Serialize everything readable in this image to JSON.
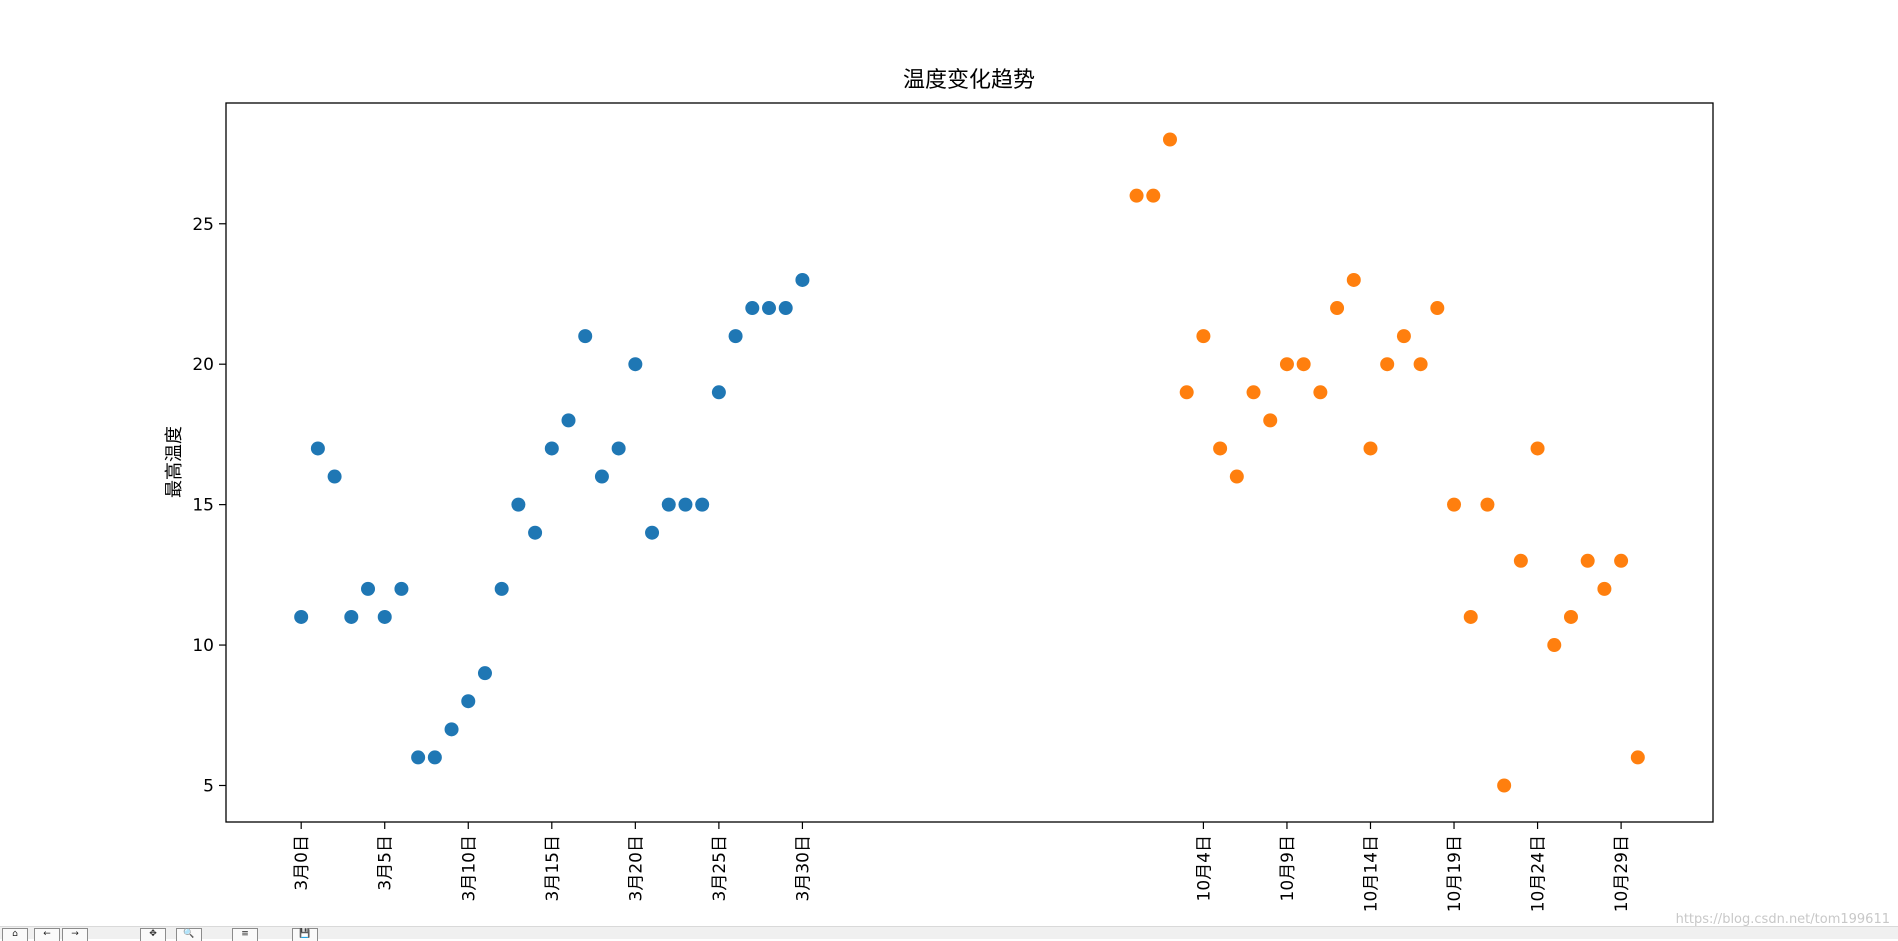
{
  "chart_data": {
    "type": "scatter",
    "title": "温度变化趋势",
    "ylabel": "最高温度",
    "xlabel": "",
    "ylim": [
      3.7,
      29.3
    ],
    "yticks": [
      5,
      10,
      15,
      20,
      25
    ],
    "xlim": [
      -4.5,
      84.5
    ],
    "grid": false,
    "x_tick_positions": [
      0,
      5,
      10,
      15,
      20,
      25,
      30,
      54,
      59,
      64,
      69,
      74,
      79
    ],
    "x_tick_labels": [
      "3月0日",
      "3月5日",
      "3月10日",
      "3月15日",
      "3月20日",
      "3月25日",
      "3月30日",
      "10月4日",
      "10月9日",
      "10月14日",
      "10月19日",
      "10月24日",
      "10月29日"
    ],
    "series": [
      {
        "color": "#1f77b4",
        "x": [
          0,
          1,
          2,
          3,
          4,
          5,
          6,
          7,
          8,
          9,
          10,
          11,
          12,
          13,
          14,
          15,
          16,
          17,
          18,
          19,
          20,
          21,
          22,
          23,
          24,
          25,
          26,
          27,
          28,
          29,
          30
        ],
        "y": [
          11,
          17,
          16,
          11,
          12,
          11,
          12,
          6,
          6,
          7,
          8,
          9,
          12,
          15,
          14,
          17,
          18,
          21,
          16,
          17,
          20,
          14,
          15,
          15,
          15,
          19,
          21,
          22,
          22,
          22,
          23
        ]
      },
      {
        "color": "#ff7f0e",
        "x": [
          50,
          51,
          52,
          53,
          54,
          55,
          56,
          57,
          58,
          59,
          60,
          61,
          62,
          63,
          64,
          65,
          66,
          67,
          68,
          69,
          70,
          71,
          72,
          73,
          74,
          75,
          76,
          77,
          78,
          79,
          80
        ],
        "y": [
          26,
          26,
          28,
          19,
          21,
          17,
          16,
          19,
          18,
          20,
          20,
          19,
          22,
          23,
          17,
          20,
          21,
          20,
          22,
          15,
          11,
          15,
          5,
          13,
          17,
          10,
          11,
          13,
          12,
          13,
          6
        ]
      }
    ]
  },
  "toolbar": {
    "buttons": [
      "⌂",
      "←",
      "→",
      "✥",
      "🔍",
      "≡",
      "💾"
    ]
  },
  "watermark": "https://blog.csdn.net/tom199611"
}
